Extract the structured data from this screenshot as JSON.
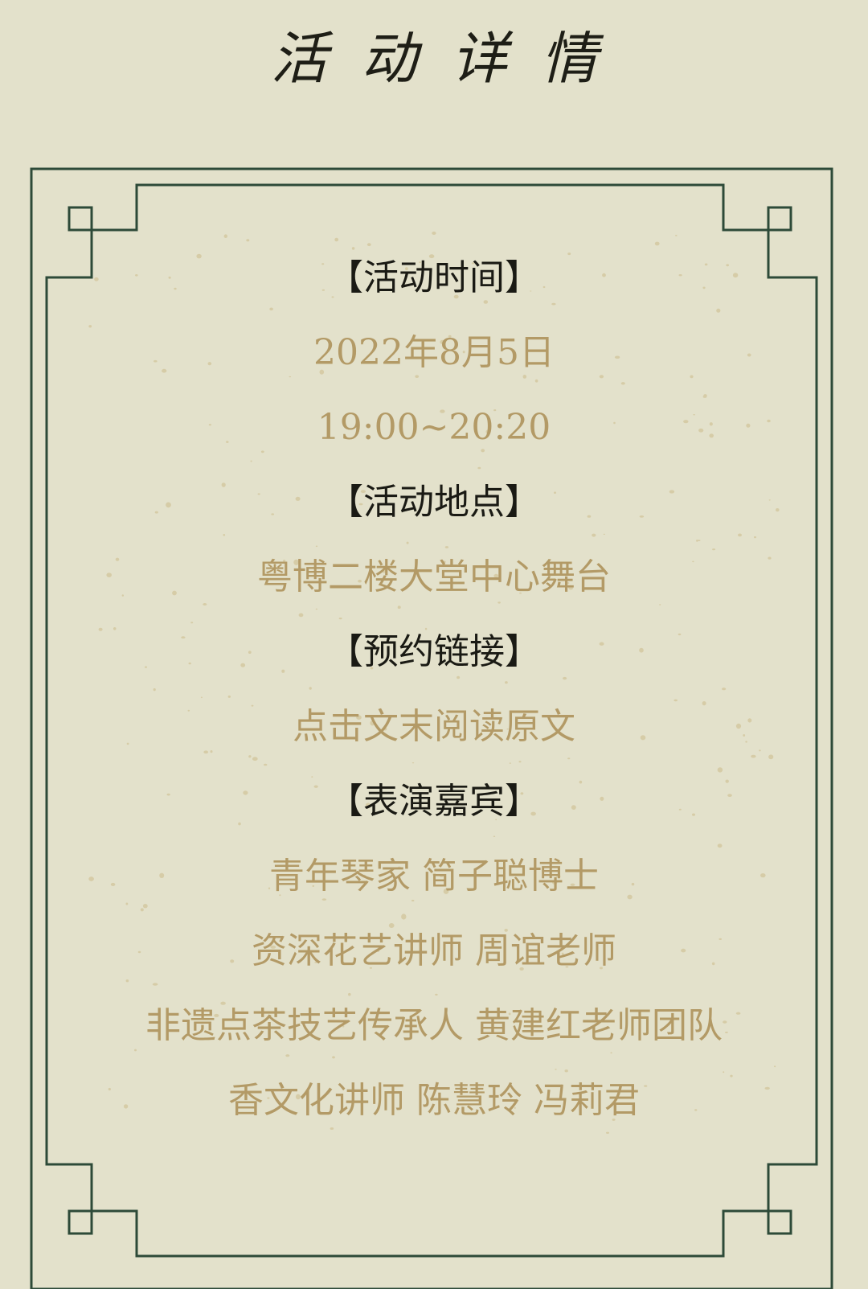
{
  "title": "活动详情",
  "colors": {
    "background": "#e3e1cb",
    "frame": "#2d4a38",
    "heading": "#1a1a14",
    "value": "#b39a66"
  },
  "sections": [
    {
      "heading": "【活动时间】",
      "values": [
        "2022年8月5日",
        "19:00~20:20"
      ]
    },
    {
      "heading": "【活动地点】",
      "values": [
        "粤博二楼大堂中心舞台"
      ]
    },
    {
      "heading": "【预约链接】",
      "values": [
        "点击文末阅读原文"
      ]
    },
    {
      "heading": "【表演嘉宾】",
      "values": [
        "青年琴家  简子聪博士",
        "资深花艺讲师  周谊老师",
        "非遗点茶技艺传承人  黄建红老师团队",
        "香文化讲师 陈慧玲  冯莉君"
      ]
    }
  ]
}
